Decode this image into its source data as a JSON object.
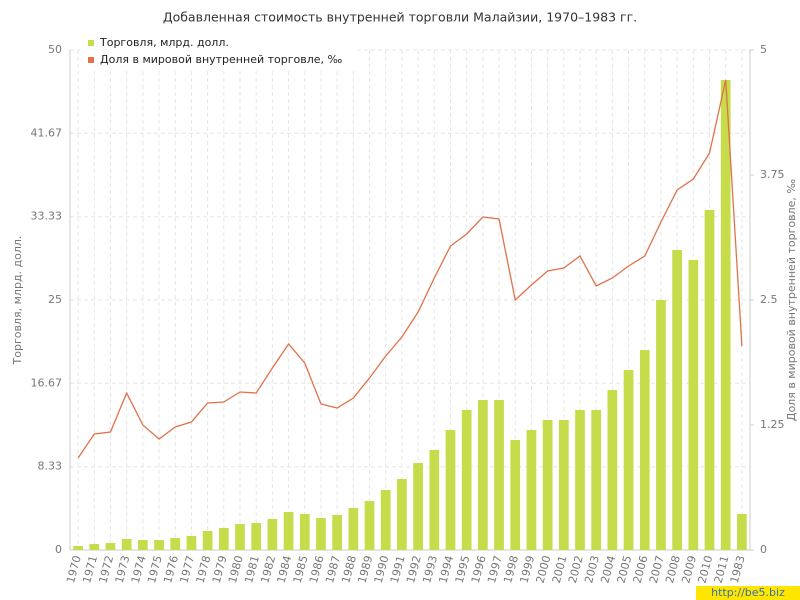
{
  "chart_data": {
    "type": "bar_line",
    "title": "Добавленная стоимость внутренней торговли Малайзии, 1970–1983 гг.",
    "y_label": "Торговля, млрд. долл.",
    "y2_label": "Доля в мировой внутренней торговле, ‰",
    "watermark": "http://be5.biz",
    "categories": [
      "1970",
      "1971",
      "1972",
      "1973",
      "1974",
      "1975",
      "1976",
      "1977",
      "1978",
      "1979",
      "1980",
      "1981",
      "1982",
      "1984",
      "1985",
      "1986",
      "1987",
      "1988",
      "1989",
      "1990",
      "1991",
      "1992",
      "1993",
      "1994",
      "1995",
      "1996",
      "1997",
      "1998",
      "1999",
      "2000",
      "2001",
      "2002",
      "2003",
      "2004",
      "2005",
      "2006",
      "2007",
      "2008",
      "2009",
      "2010",
      "2011",
      "1983"
    ],
    "series": [
      {
        "name": "Торговля, млрд. долл.",
        "type": "bar",
        "color": "#c6dc4a",
        "values": [
          0.4,
          0.6,
          0.7,
          1.1,
          1.0,
          1.0,
          1.2,
          1.4,
          1.9,
          2.2,
          2.6,
          2.7,
          3.1,
          3.8,
          3.6,
          3.2,
          3.5,
          4.2,
          4.9,
          6.0,
          7.1,
          8.7,
          10.0,
          12.0,
          14.0,
          15.0,
          15.0,
          11.0,
          12.0,
          13.0,
          13.0,
          14.0,
          14.0,
          16.0,
          18.0,
          20.0,
          25.0,
          30.0,
          29.0,
          34.0,
          47.0,
          3.6
        ]
      },
      {
        "name": "Доля в мировой внутренней торговле, ‰",
        "type": "line",
        "axis": "y2",
        "color": "#e0714a",
        "values": [
          0.92,
          1.16,
          1.18,
          1.57,
          1.25,
          1.11,
          1.23,
          1.28,
          1.47,
          1.48,
          1.58,
          1.57,
          1.82,
          2.06,
          1.87,
          1.46,
          1.42,
          1.52,
          1.72,
          1.94,
          2.13,
          2.38,
          2.72,
          3.04,
          3.16,
          3.33,
          3.31,
          2.5,
          2.65,
          2.79,
          2.82,
          2.94,
          2.64,
          2.72,
          2.84,
          2.94,
          3.28,
          3.6,
          3.71,
          3.97,
          4.7,
          2.04
        ]
      }
    ],
    "ylim": [
      0,
      50
    ],
    "yticks": [
      0,
      8.33,
      16.67,
      25,
      33.33,
      41.67,
      50
    ],
    "y2lim": [
      0,
      5
    ],
    "y2ticks": [
      0,
      1.25,
      2.5,
      3.75,
      5
    ],
    "grid": true,
    "legend": "top-left"
  }
}
